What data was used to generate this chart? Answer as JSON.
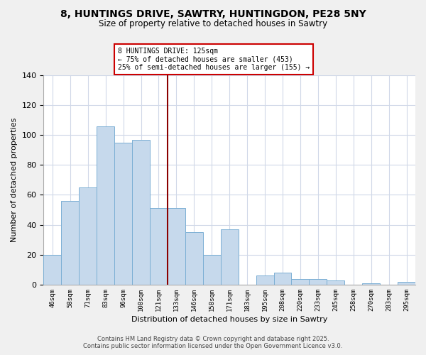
{
  "title": "8, HUNTINGS DRIVE, SAWTRY, HUNTINGDON, PE28 5NY",
  "subtitle": "Size of property relative to detached houses in Sawtry",
  "xlabel": "Distribution of detached houses by size in Sawtry",
  "ylabel": "Number of detached properties",
  "categories": [
    "46sqm",
    "58sqm",
    "71sqm",
    "83sqm",
    "96sqm",
    "108sqm",
    "121sqm",
    "133sqm",
    "146sqm",
    "158sqm",
    "171sqm",
    "183sqm",
    "195sqm",
    "208sqm",
    "220sqm",
    "233sqm",
    "245sqm",
    "258sqm",
    "270sqm",
    "283sqm",
    "295sqm"
  ],
  "values": [
    20,
    56,
    65,
    106,
    95,
    97,
    51,
    51,
    35,
    20,
    37,
    0,
    6,
    8,
    4,
    4,
    3,
    0,
    1,
    0,
    2
  ],
  "bar_color": "#c6d9ec",
  "bar_edge_color": "#7bafd4",
  "vline_x_index": 7,
  "vline_color": "#8b0000",
  "ylim": [
    0,
    140
  ],
  "yticks": [
    0,
    20,
    40,
    60,
    80,
    100,
    120,
    140
  ],
  "annotation_box_text": "8 HUNTINGS DRIVE: 125sqm\n← 75% of detached houses are smaller (453)\n25% of semi-detached houses are larger (155) →",
  "footer_line1": "Contains HM Land Registry data © Crown copyright and database right 2025.",
  "footer_line2": "Contains public sector information licensed under the Open Government Licence v3.0.",
  "plot_bg_color": "#ffffff",
  "fig_bg_color": "#f0f0f0",
  "grid_color": "#d0d8e8"
}
